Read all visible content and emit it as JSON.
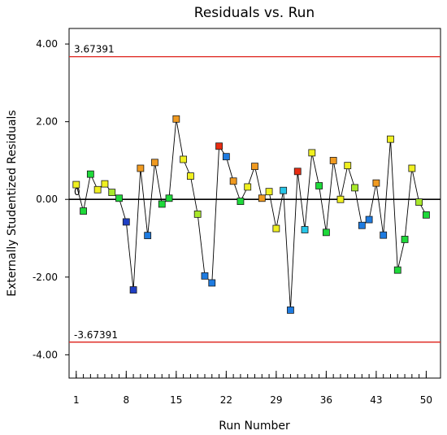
{
  "chart_data": {
    "type": "scatter",
    "title": "Residuals vs. Run",
    "xlabel": "Run Number",
    "ylabel": "Externally Studentized Residuals",
    "xlim": [
      0,
      52
    ],
    "ylim": [
      -4.6,
      4.4
    ],
    "xticks": [
      1,
      8,
      15,
      22,
      29,
      36,
      43,
      50
    ],
    "minor_xticks": [
      1,
      2,
      3,
      4,
      5,
      6,
      7,
      8,
      9,
      10,
      11,
      12,
      13,
      14,
      15,
      16,
      17,
      18,
      19,
      20,
      21,
      22,
      23,
      24,
      25,
      26,
      27,
      28,
      29,
      30,
      31,
      32,
      33,
      34,
      35,
      36,
      37,
      38,
      39,
      40,
      41,
      42,
      43,
      44,
      45,
      46,
      47,
      48,
      49,
      50
    ],
    "yticks": [
      {
        "value": 4,
        "label": "4.00"
      },
      {
        "value": 2,
        "label": "2.00"
      },
      {
        "value": 0,
        "label": "0.00"
      },
      {
        "value": -2,
        "label": "-2.00"
      },
      {
        "value": -4,
        "label": "-4.00"
      }
    ],
    "reference_lines": [
      {
        "value": 3.67391,
        "label": "3.67391",
        "color": "#e0302a"
      },
      {
        "value": 0,
        "label": "0",
        "color": "#000000"
      },
      {
        "value": -3.67391,
        "label": "-3.67391",
        "color": "#e0302a"
      }
    ],
    "connect_points": true,
    "line_color": "#000000",
    "color_scale": [
      "#1f3fc4",
      "#1e7be0",
      "#27c6e8",
      "#1ed93a",
      "#a8e82a",
      "#f0f020",
      "#f09a20",
      "#e82c12"
    ],
    "x": [
      1,
      2,
      3,
      4,
      5,
      6,
      7,
      8,
      9,
      10,
      11,
      12,
      13,
      14,
      15,
      16,
      17,
      18,
      19,
      20,
      21,
      22,
      23,
      24,
      25,
      26,
      27,
      28,
      29,
      30,
      31,
      32,
      33,
      34,
      35,
      36,
      37,
      38,
      39,
      40,
      41,
      42,
      43,
      44,
      45,
      46,
      47,
      48,
      49,
      50
    ],
    "y": [
      0.38,
      -0.3,
      0.65,
      0.25,
      0.4,
      0.18,
      0.03,
      -0.58,
      -2.33,
      0.8,
      -0.93,
      0.95,
      -0.12,
      0.03,
      2.07,
      1.03,
      0.6,
      -0.38,
      -1.97,
      -2.15,
      1.37,
      1.1,
      0.47,
      -0.05,
      0.32,
      0.85,
      0.03,
      0.2,
      -0.75,
      0.23,
      -2.85,
      0.72,
      -0.78,
      1.2,
      0.35,
      -0.85,
      1.0,
      0.0,
      0.87,
      0.3,
      -0.67,
      -0.52,
      0.42,
      -0.92,
      1.55,
      -1.82,
      -1.03,
      0.8,
      -0.07,
      -0.4
    ],
    "point_colors": [
      "#f0f020",
      "#1ed93a",
      "#1ed93a",
      "#f0f020",
      "#f0f020",
      "#a8e82a",
      "#1ed93a",
      "#1f3fc4",
      "#1f3fc4",
      "#f09a20",
      "#1e7be0",
      "#f09a20",
      "#1ed93a",
      "#1ed93a",
      "#f09a20",
      "#f0f020",
      "#f0f020",
      "#a8e82a",
      "#1e7be0",
      "#1e7be0",
      "#e82c12",
      "#1e7be0",
      "#f09a20",
      "#1ed93a",
      "#f0f020",
      "#f09a20",
      "#f09a20",
      "#f0f020",
      "#f0f020",
      "#27c6e8",
      "#1e7be0",
      "#e82c12",
      "#27c6e8",
      "#f0f020",
      "#1ed93a",
      "#1ed93a",
      "#f09a20",
      "#f0f020",
      "#f0f020",
      "#a8e82a",
      "#1e7be0",
      "#1e7be0",
      "#f09a20",
      "#1e7be0",
      "#f0f020",
      "#1ed93a",
      "#1ed93a",
      "#f0f020",
      "#a8e82a",
      "#1ed93a"
    ]
  }
}
